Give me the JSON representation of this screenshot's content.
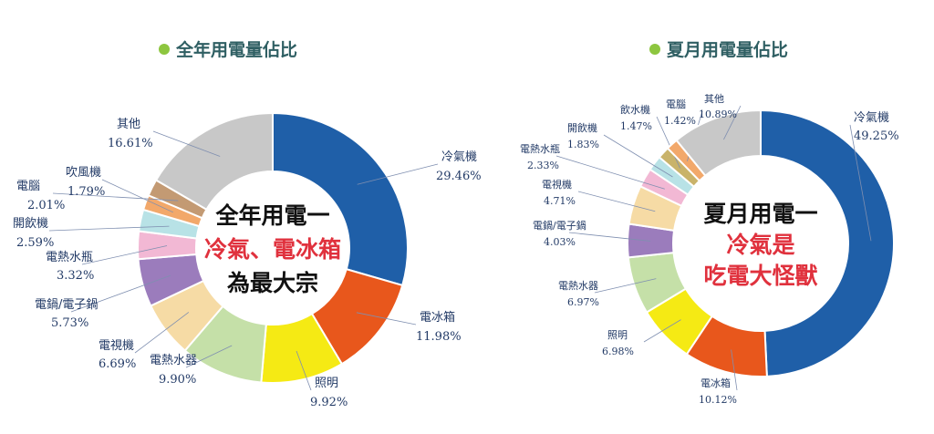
{
  "chart_data": [
    {
      "type": "pie",
      "title": "全年用電量佔比",
      "center_text": [
        {
          "text": "全年用電一",
          "color": "#111111"
        },
        {
          "text": "冷氣、電冰箱",
          "color": "#e0313d"
        },
        {
          "text": "為最大宗",
          "color": "#111111"
        }
      ],
      "slices": [
        {
          "name": "冷氣機",
          "value": 29.46,
          "label": "29.46%",
          "color": "#1f5fa8"
        },
        {
          "name": "電冰箱",
          "value": 11.98,
          "label": "11.98%",
          "color": "#e8571c"
        },
        {
          "name": "照明",
          "value": 9.92,
          "label": "9.92%",
          "color": "#f5ea14"
        },
        {
          "name": "電熱水器",
          "value": 9.9,
          "label": "9.90%",
          "color": "#c5e0a8"
        },
        {
          "name": "電視機",
          "value": 6.69,
          "label": "6.69%",
          "color": "#f6dba5"
        },
        {
          "name": "電鍋/電子鍋",
          "value": 5.73,
          "label": "5.73%",
          "color": "#9b7cbc"
        },
        {
          "name": "電熱水瓶",
          "value": 3.32,
          "label": "3.32%",
          "color": "#f2b8d4"
        },
        {
          "name": "開飲機",
          "value": 2.59,
          "label": "2.59%",
          "color": "#b8e2e6"
        },
        {
          "name": "吹風機",
          "value": 1.79,
          "label": "1.79%",
          "color": "#f2a86a"
        },
        {
          "name": "電腦",
          "value": 2.01,
          "label": "2.01%",
          "color": "#c39a73"
        },
        {
          "name": "其他",
          "value": 16.61,
          "label": "16.61%",
          "color": "#c8c8c8"
        }
      ]
    },
    {
      "type": "pie",
      "title": "夏月用電量佔比",
      "center_text": [
        {
          "text": "夏月用電一",
          "color": "#111111"
        },
        {
          "text": "冷氣是",
          "color": "#e0313d"
        },
        {
          "text": "吃電大怪獸",
          "color": "#e0313d"
        }
      ],
      "slices": [
        {
          "name": "冷氣機",
          "value": 49.25,
          "label": "49.25%",
          "color": "#1f5fa8"
        },
        {
          "name": "電冰箱",
          "value": 10.12,
          "label": "10.12%",
          "color": "#e8571c"
        },
        {
          "name": "照明",
          "value": 6.98,
          "label": "6.98%",
          "color": "#f5ea14"
        },
        {
          "name": "電熱水器",
          "value": 6.97,
          "label": "6.97%",
          "color": "#c5e0a8"
        },
        {
          "name": "電鍋/電子鍋",
          "value": 4.03,
          "label": "4.03%",
          "color": "#9b7cbc"
        },
        {
          "name": "電視機",
          "value": 4.71,
          "label": "4.71%",
          "color": "#f6dba5"
        },
        {
          "name": "電熱水瓶",
          "value": 2.33,
          "label": "2.33%",
          "color": "#f2b8d4"
        },
        {
          "name": "開飲機",
          "value": 1.83,
          "label": "1.83%",
          "color": "#b8e2e6"
        },
        {
          "name": "飲水機",
          "value": 1.47,
          "label": "1.47%",
          "color": "#c9b36a"
        },
        {
          "name": "電腦",
          "value": 1.42,
          "label": "1.42%",
          "color": "#f2a86a"
        },
        {
          "name": "其他",
          "value": 10.89,
          "label": "10.89%",
          "color": "#c8c8c8"
        }
      ]
    }
  ],
  "colors": {
    "title_bullet": "#8dc63f",
    "title_text": "#2f5f63",
    "label_text": "#223a66",
    "leader_line": "#7f8fb0"
  }
}
